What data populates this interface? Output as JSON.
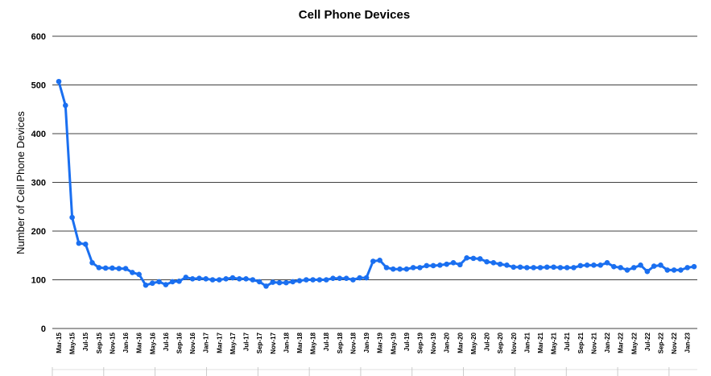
{
  "chart_data": {
    "type": "line",
    "title": "Cell Phone Devices",
    "xlabel": "",
    "ylabel": "Number of Cell Phone Devices",
    "ylim": [
      0,
      600
    ],
    "yticks": [
      0,
      100,
      200,
      300,
      400,
      500,
      600
    ],
    "grid": "horizontal",
    "legend": "none",
    "color": "#1a6ff0",
    "x": [
      "Mar-15",
      "Apr-15",
      "May-15",
      "Jun-15",
      "Jul-15",
      "Aug-15",
      "Sep-15",
      "Oct-15",
      "Nov-15",
      "Dec-15",
      "Jan-16",
      "Feb-16",
      "Mar-16",
      "Apr-16",
      "May-16",
      "Jun-16",
      "Jul-16",
      "Aug-16",
      "Sep-16",
      "Oct-16",
      "Nov-16",
      "Dec-16",
      "Jan-17",
      "Feb-17",
      "Mar-17",
      "Apr-17",
      "May-17",
      "Jun-17",
      "Jul-17",
      "Aug-17",
      "Sep-17",
      "Oct-17",
      "Nov-17",
      "Dec-17",
      "Jan-18",
      "Feb-18",
      "Mar-18",
      "Apr-18",
      "May-18",
      "Jun-18",
      "Jul-18",
      "Aug-18",
      "Sep-18",
      "Oct-18",
      "Nov-18",
      "Dec-18",
      "Jan-19",
      "Feb-19",
      "Mar-19",
      "Apr-19",
      "May-19",
      "Jun-19",
      "Jul-19",
      "Aug-19",
      "Sep-19",
      "Oct-19",
      "Nov-19",
      "Dec-19",
      "Jan-20",
      "Feb-20",
      "Mar-20",
      "Apr-20",
      "May-20",
      "Jun-20",
      "Jul-20",
      "Aug-20",
      "Sep-20",
      "Oct-20",
      "Nov-20",
      "Dec-20",
      "Jan-21",
      "Feb-21",
      "Mar-21",
      "Apr-21",
      "May-21",
      "Jun-21",
      "Jul-21",
      "Aug-21",
      "Sep-21",
      "Oct-21",
      "Nov-21",
      "Dec-21",
      "Jan-22",
      "Feb-22",
      "Mar-22",
      "Apr-22",
      "May-22",
      "Jun-22",
      "Jul-22",
      "Aug-22",
      "Sep-22",
      "Oct-22",
      "Nov-22",
      "Dec-22",
      "Jan-23",
      "Feb-23"
    ],
    "tick_labels": [
      "Mar-15",
      "May-15",
      "Jul-15",
      "Sep-15",
      "Nov-15",
      "Jan-16",
      "Mar-16",
      "May-16",
      "Jul-16",
      "Sep-16",
      "Nov-16",
      "Jan-17",
      "Mar-17",
      "May-17",
      "Jul-17",
      "Sep-17",
      "Nov-17",
      "Jan-18",
      "Mar-18",
      "May-18",
      "Jul-18",
      "Sep-18",
      "Nov-18",
      "Jan-19",
      "Mar-19",
      "May-19",
      "Jul-19",
      "Sep-19",
      "Nov-19",
      "Jan-20",
      "Mar-20",
      "May-20",
      "Jul-20",
      "Sep-20",
      "Nov-20",
      "Jan-21",
      "Mar-21",
      "May-21",
      "Jul-21",
      "Sep-21",
      "Nov-21",
      "Jan-22",
      "Mar-22",
      "May-22",
      "Jul-22",
      "Sep-22",
      "Nov-22",
      "Jan-23"
    ],
    "series": [
      {
        "values": [
          507,
          458,
          228,
          175,
          173,
          135,
          125,
          124,
          124,
          123,
          123,
          115,
          111,
          89,
          93,
          96,
          90,
          96,
          97,
          105,
          102,
          103,
          102,
          100,
          100,
          102,
          104,
          102,
          102,
          100,
          96,
          87,
          95,
          94,
          94,
          96,
          98,
          100,
          100,
          100,
          100,
          103,
          103,
          103,
          100,
          104,
          104,
          138,
          140,
          125,
          122,
          122,
          122,
          125,
          125,
          129,
          129,
          130,
          132,
          135,
          131,
          145,
          144,
          143,
          137,
          135,
          132,
          130,
          126,
          126,
          125,
          125,
          125,
          126,
          126,
          125,
          125,
          125,
          129,
          130,
          130,
          130,
          135,
          127,
          125,
          120,
          125,
          130,
          117,
          128,
          130,
          120,
          120,
          120,
          125,
          127
        ]
      }
    ]
  }
}
